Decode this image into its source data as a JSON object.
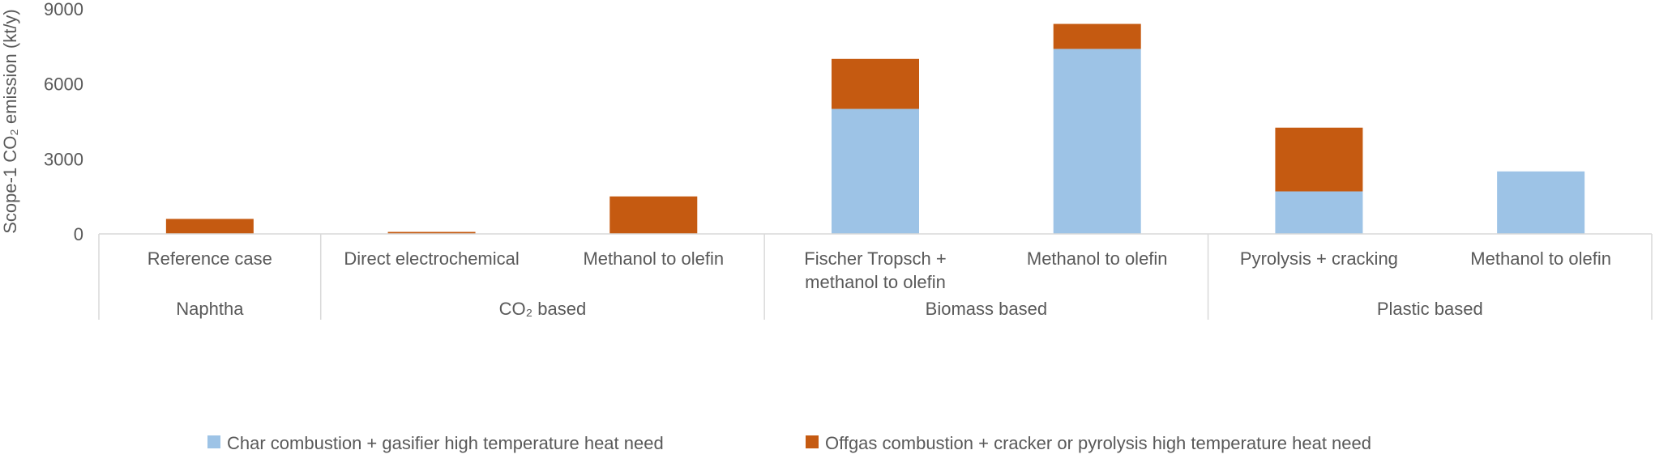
{
  "chart_data": {
    "type": "bar",
    "stacked": true,
    "ylabel": "Scope-1 CO₂ emission (kt/y)",
    "ylim": [
      0,
      9000
    ],
    "yticks": [
      0,
      3000,
      6000,
      9000
    ],
    "grid": false,
    "legend_position": "bottom",
    "groups": [
      {
        "label": "Naphtha",
        "categories": [
          "Reference case"
        ]
      },
      {
        "label": "CO₂ based",
        "categories": [
          "Direct electrochemical",
          "Methanol to olefin"
        ]
      },
      {
        "label": "Biomass based",
        "categories": [
          "Fischer Tropsch + methanol to olefin",
          "Methanol to olefin"
        ]
      },
      {
        "label": "Plastic based",
        "categories": [
          "Pyrolysis + cracking",
          "Methanol to olefin"
        ]
      }
    ],
    "categories": [
      "Reference case",
      "Direct electrochemical",
      "Methanol to olefin",
      "Fischer Tropsch + methanol to olefin",
      "Methanol to olefin",
      "Pyrolysis + cracking",
      "Methanol to olefin"
    ],
    "category_lines": [
      [
        "Reference case"
      ],
      [
        "Direct electrochemical"
      ],
      [
        "Methanol to olefin"
      ],
      [
        "Fischer Tropsch +",
        "methanol to olefin"
      ],
      [
        "Methanol to olefin"
      ],
      [
        "Pyrolysis + cracking"
      ],
      [
        "Methanol to olefin"
      ]
    ],
    "series": [
      {
        "name": "Char combustion + gasifier high temperature heat need",
        "color": "#9dc3e6",
        "values": [
          0,
          0,
          0,
          5000,
          7400,
          1700,
          2500
        ]
      },
      {
        "name": "Offgas combustion + cracker or pyrolysis high temperature heat need",
        "color": "#c55a11",
        "values": [
          600,
          80,
          1500,
          2000,
          1000,
          2550,
          0
        ]
      }
    ]
  }
}
